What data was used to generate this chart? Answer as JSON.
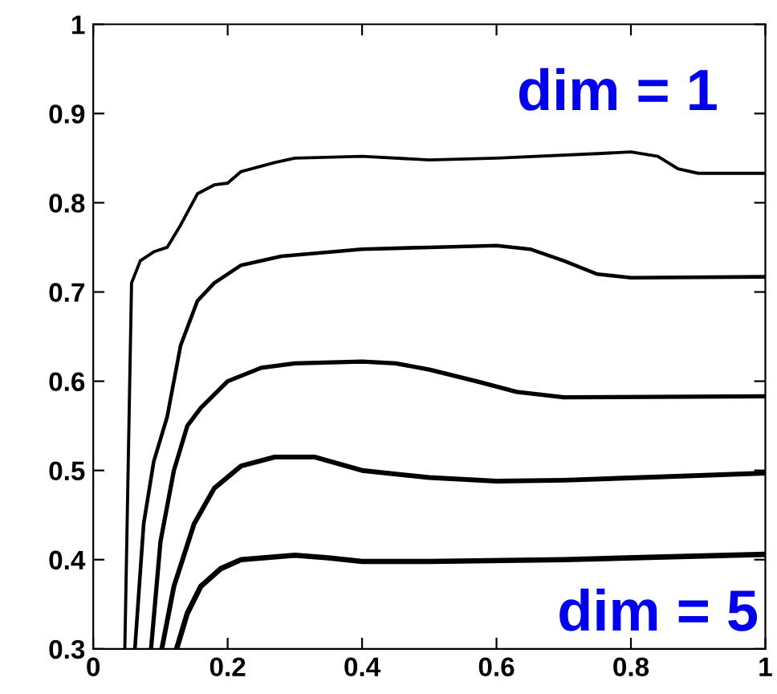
{
  "chart_data": {
    "type": "line",
    "xlim": [
      0,
      1
    ],
    "ylim": [
      0.3,
      1
    ],
    "xticks": [
      0,
      0.2,
      0.4,
      0.6,
      0.8,
      1
    ],
    "yticks": [
      0.3,
      0.4,
      0.5,
      0.6,
      0.7,
      0.8,
      0.9,
      1
    ],
    "grid": false,
    "marker": "none",
    "line_style": "solid",
    "annotations": [
      "dim = 1",
      "dim = 5"
    ],
    "series": [
      {
        "color": "#000000",
        "x": [
          0.047,
          0.057,
          0.07,
          0.09,
          0.11,
          0.13,
          0.155,
          0.18,
          0.2,
          0.22,
          0.27,
          0.3,
          0.4,
          0.5,
          0.6,
          0.75,
          0.8,
          0.84,
          0.87,
          0.9,
          1
        ],
        "values": [
          0.3,
          0.71,
          0.735,
          0.745,
          0.75,
          0.775,
          0.81,
          0.82,
          0.822,
          0.835,
          0.845,
          0.85,
          0.852,
          0.848,
          0.85,
          0.855,
          0.857,
          0.852,
          0.838,
          0.833,
          0.833
        ]
      },
      {
        "color": "#000000",
        "x": [
          0.062,
          0.075,
          0.09,
          0.11,
          0.13,
          0.155,
          0.18,
          0.22,
          0.28,
          0.4,
          0.5,
          0.6,
          0.65,
          0.7,
          0.75,
          0.8,
          1
        ],
        "values": [
          0.3,
          0.44,
          0.51,
          0.56,
          0.64,
          0.69,
          0.71,
          0.73,
          0.74,
          0.748,
          0.75,
          0.752,
          0.748,
          0.735,
          0.72,
          0.716,
          0.717
        ]
      },
      {
        "color": "#000000",
        "x": [
          0.086,
          0.1,
          0.12,
          0.14,
          0.16,
          0.2,
          0.25,
          0.3,
          0.4,
          0.45,
          0.5,
          0.57,
          0.63,
          0.7,
          1
        ],
        "values": [
          0.3,
          0.42,
          0.5,
          0.55,
          0.57,
          0.6,
          0.615,
          0.62,
          0.622,
          0.62,
          0.613,
          0.6,
          0.588,
          0.582,
          0.583
        ]
      },
      {
        "color": "#000000",
        "x": [
          0.102,
          0.12,
          0.15,
          0.18,
          0.22,
          0.27,
          0.33,
          0.4,
          0.5,
          0.6,
          0.7,
          0.85,
          1
        ],
        "values": [
          0.3,
          0.37,
          0.44,
          0.48,
          0.505,
          0.515,
          0.515,
          0.5,
          0.492,
          0.488,
          0.489,
          0.493,
          0.497
        ]
      },
      {
        "color": "#000000",
        "x": [
          0.124,
          0.14,
          0.16,
          0.19,
          0.22,
          0.3,
          0.35,
          0.4,
          0.5,
          0.7,
          0.85,
          1
        ],
        "values": [
          0.3,
          0.34,
          0.37,
          0.39,
          0.4,
          0.405,
          0.402,
          0.398,
          0.398,
          0.4,
          0.403,
          0.406
        ]
      }
    ]
  }
}
